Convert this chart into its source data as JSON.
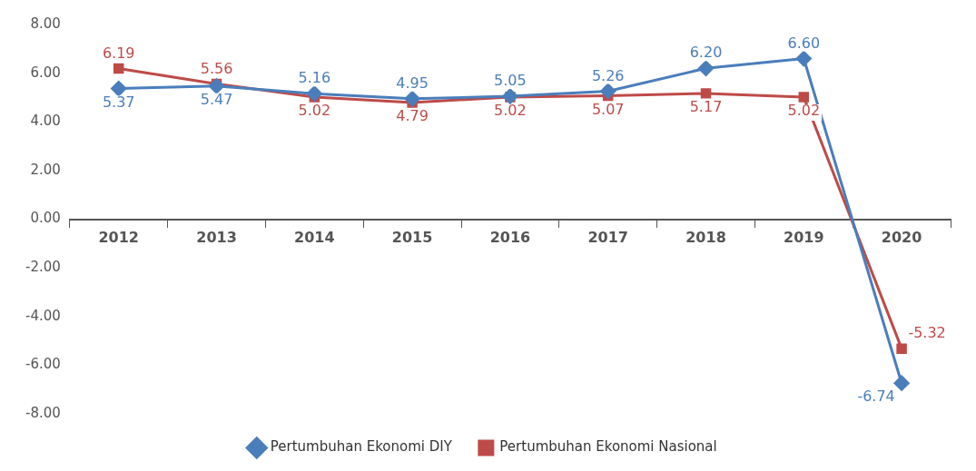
{
  "chart_data": {
    "type": "line",
    "categories": [
      "2012",
      "2013",
      "2014",
      "2015",
      "2016",
      "2017",
      "2018",
      "2019",
      "2020"
    ],
    "series": [
      {
        "name": "Pertumbuhan Ekonomi DIY",
        "color": "#4a7ebb",
        "marker": "diamond",
        "values": [
          5.37,
          5.47,
          5.16,
          4.95,
          5.05,
          5.26,
          6.2,
          6.6,
          -6.74
        ],
        "value_labels": [
          "5.37",
          "5.47",
          "5.16",
          "4.95",
          "5.05",
          "5.26",
          "6.20",
          "6.60",
          "-6.74"
        ]
      },
      {
        "name": "Pertumbuhan Ekonomi Nasional",
        "color": "#be4b48",
        "marker": "square",
        "values": [
          6.19,
          5.56,
          5.02,
          4.79,
          5.02,
          5.07,
          5.17,
          5.02,
          -5.32
        ],
        "value_labels": [
          "6.19",
          "5.56",
          "5.02",
          "4.79",
          "5.02",
          "5.07",
          "5.17",
          "5.02",
          "-5.32"
        ]
      }
    ],
    "ylim": [
      -8,
      8
    ],
    "yticks": [
      {
        "value": -8,
        "label": "-8.00"
      },
      {
        "value": -6,
        "label": "-6.00"
      },
      {
        "value": -4,
        "label": "-4.00"
      },
      {
        "value": -2,
        "label": "-2.00"
      },
      {
        "value": 0,
        "label": "0.00"
      },
      {
        "value": 2,
        "label": "2.00"
      },
      {
        "value": 4,
        "label": "4.00"
      },
      {
        "value": 6,
        "label": "6.00"
      },
      {
        "value": 8,
        "label": "8.00"
      }
    ],
    "grid": false,
    "legend": "bottom",
    "line_style": "solid"
  }
}
